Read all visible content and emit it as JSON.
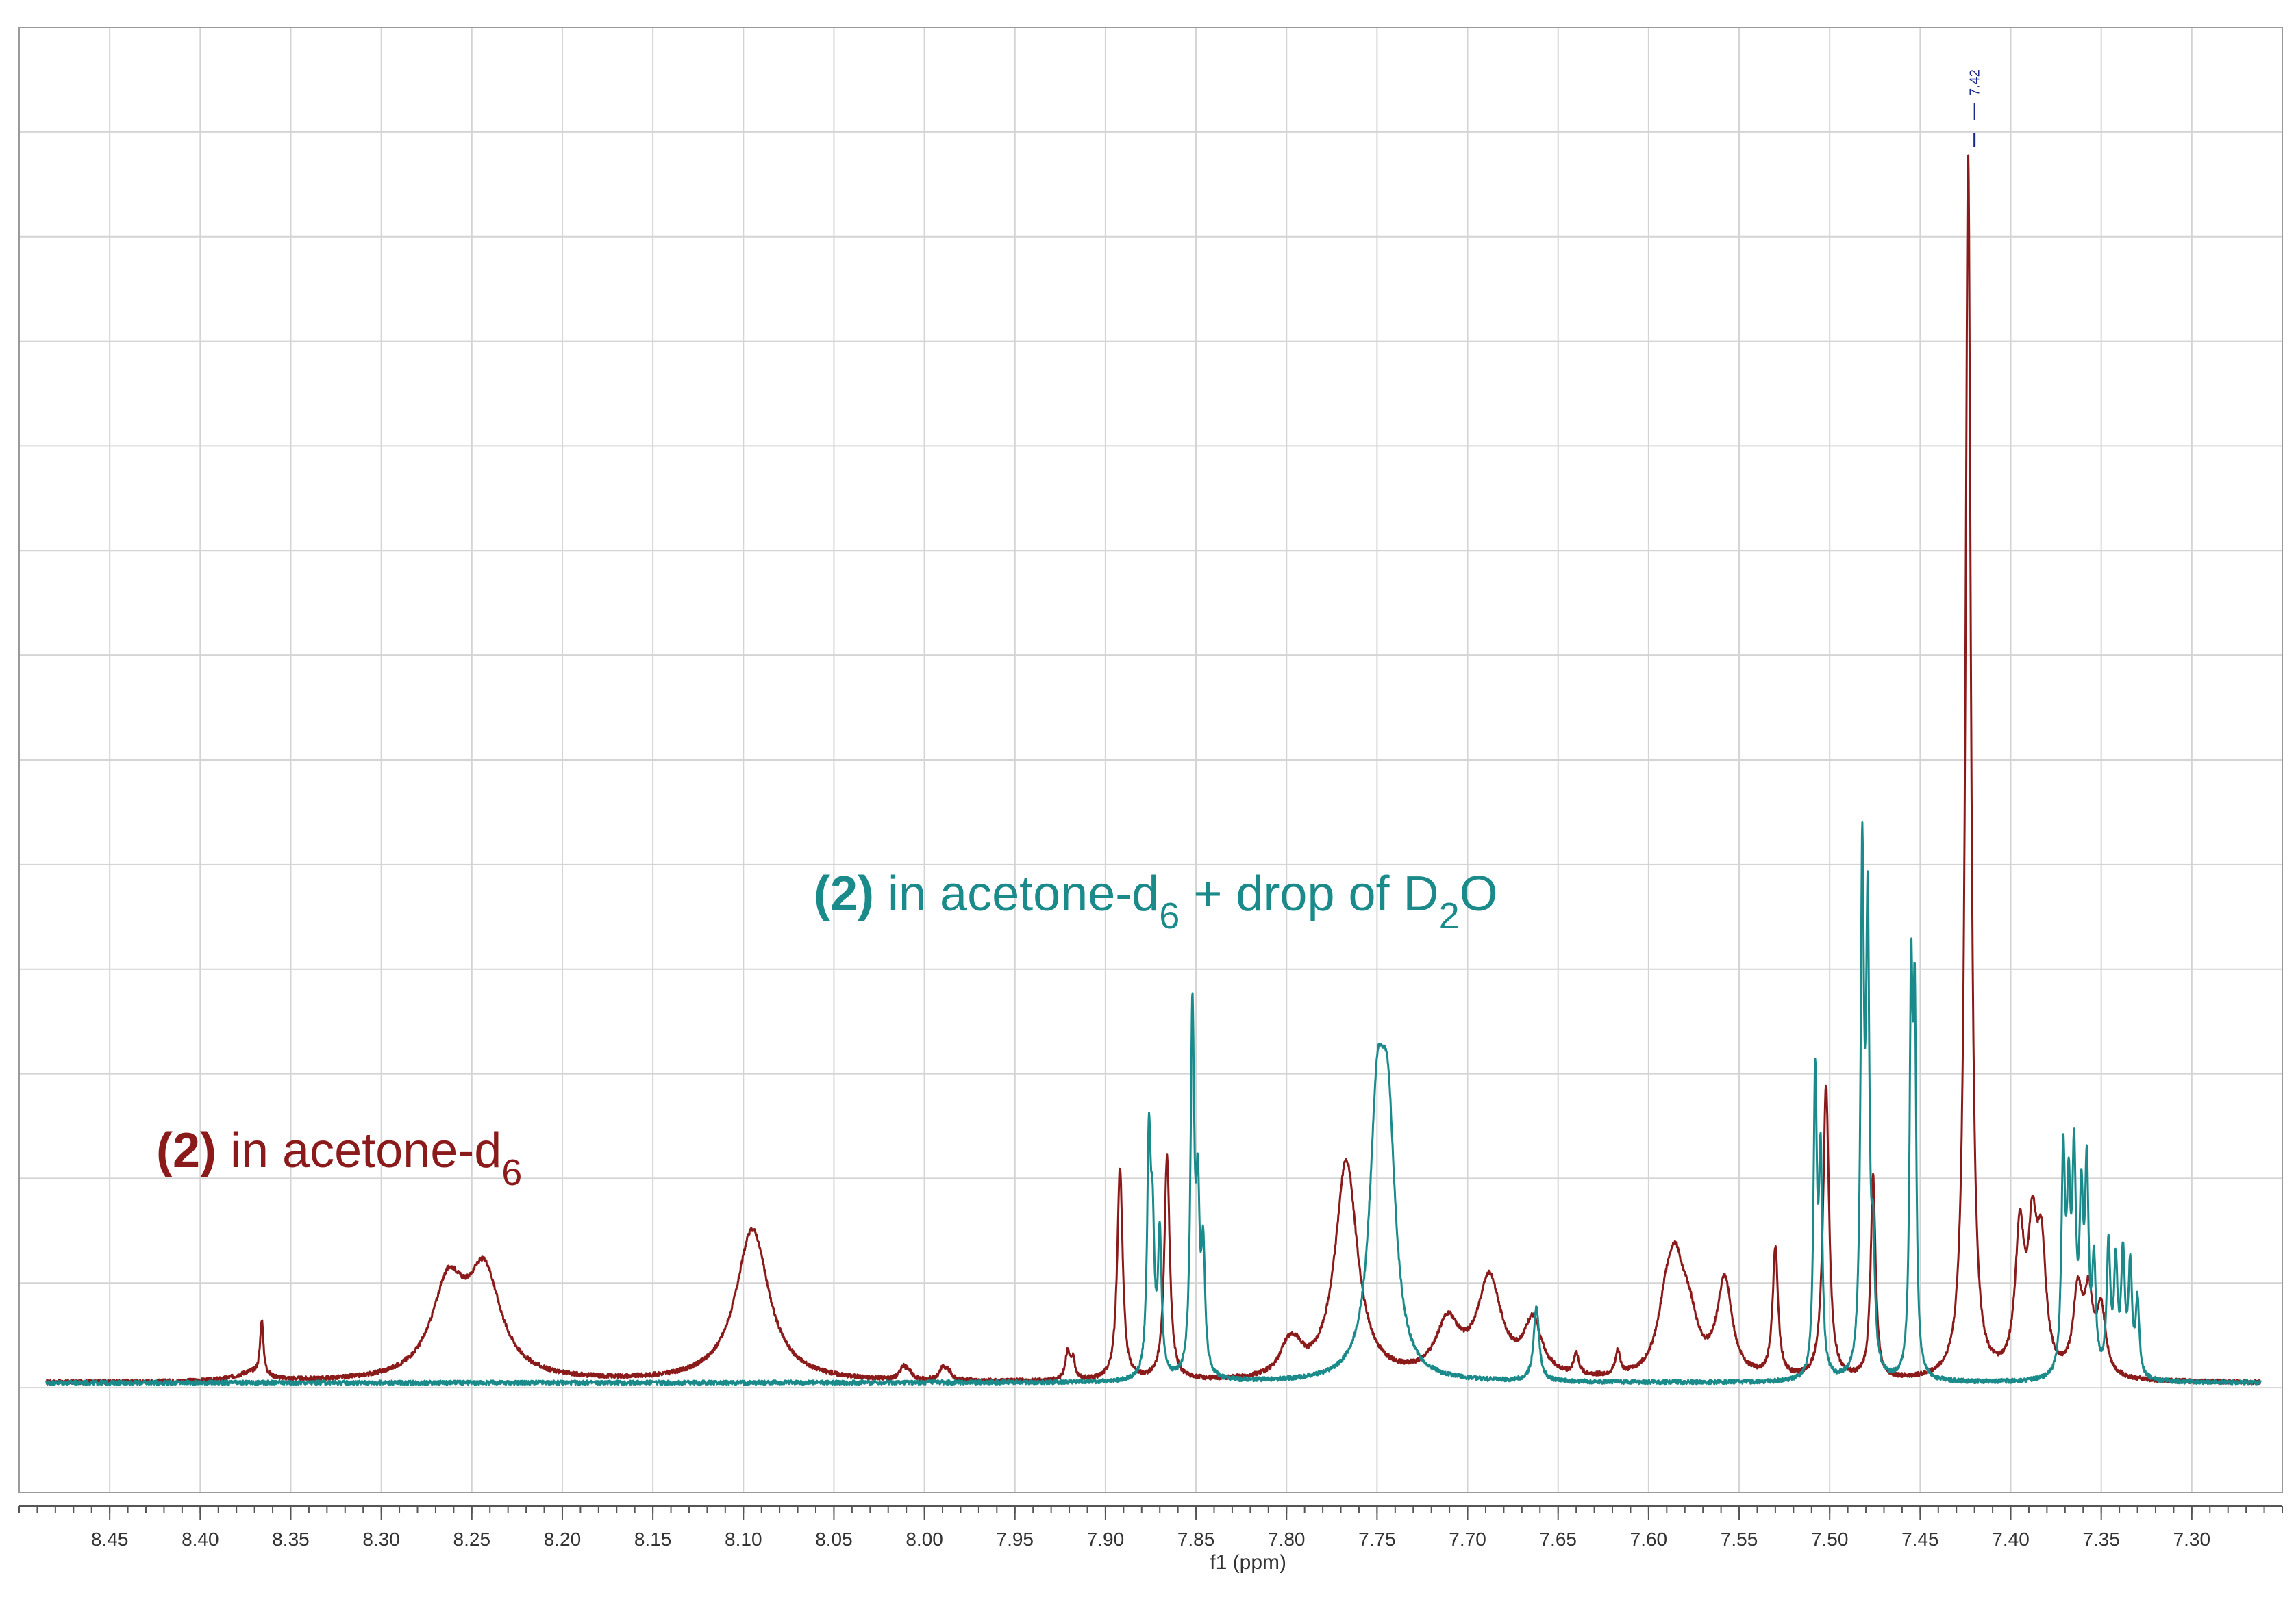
{
  "chart_data": {
    "type": "line",
    "xlabel": "f1 (ppm)",
    "x_reversed": true,
    "xlim": [
      8.5,
      7.25
    ],
    "x_ticks": [
      8.45,
      8.4,
      8.35,
      8.3,
      8.25,
      8.2,
      8.15,
      8.1,
      8.05,
      8.0,
      7.95,
      7.9,
      7.85,
      7.8,
      7.75,
      7.7,
      7.65,
      7.6,
      7.55,
      7.5,
      7.45,
      7.4,
      7.35,
      7.3
    ],
    "x_tick_labels": [
      "8.45",
      "8.40",
      "8.35",
      "8.30",
      "8.25",
      "8.20",
      "8.15",
      "8.10",
      "8.05",
      "8.00",
      "7.95",
      "7.90",
      "7.85",
      "7.80",
      "7.75",
      "7.70",
      "7.65",
      "7.60",
      "7.55",
      "7.50",
      "7.45",
      "7.40",
      "7.35",
      "7.30"
    ],
    "ylim": [
      -0.1,
      1.3
    ],
    "grid": true,
    "peak_label": {
      "ppm": 7.42,
      "text": "7.42"
    },
    "series": [
      {
        "name": "",
        "legend_bold": "(2)",
        "legend_text": " in acetone-d",
        "legend_sub": "6",
        "legend_text2": "",
        "legend_sub2": "",
        "legend_text3": "",
        "color": "#8b1a1a",
        "peaks": [
          [
            8.372,
            0.008,
            0.01
          ],
          [
            8.366,
            0.052,
            0.0011
          ],
          [
            8.263,
            0.085,
            0.011
          ],
          [
            8.243,
            0.095,
            0.011
          ],
          [
            8.095,
            0.143,
            0.011
          ],
          [
            8.012,
            0.01,
            0.002
          ],
          [
            8.009,
            0.008,
            0.002
          ],
          [
            7.99,
            0.01,
            0.002
          ],
          [
            7.987,
            0.008,
            0.002
          ],
          [
            7.921,
            0.025,
            0.0015
          ],
          [
            7.918,
            0.018,
            0.0015
          ],
          [
            7.892,
            0.2,
            0.0018
          ],
          [
            7.866,
            0.21,
            0.0018
          ],
          [
            7.8,
            0.02,
            0.005
          ],
          [
            7.795,
            0.02,
            0.005
          ],
          [
            7.767,
            0.205,
            0.0075
          ],
          [
            7.711,
            0.05,
            0.008
          ],
          [
            7.688,
            0.092,
            0.008
          ],
          [
            7.664,
            0.05,
            0.006
          ],
          [
            7.64,
            0.02,
            0.0015
          ],
          [
            7.617,
            0.022,
            0.0015
          ],
          [
            7.59,
            0.06,
            0.006
          ],
          [
            7.585,
            0.07,
            0.005
          ],
          [
            7.578,
            0.05,
            0.006
          ],
          [
            7.558,
            0.09,
            0.005
          ],
          [
            7.53,
            0.12,
            0.0018
          ],
          [
            7.502,
            0.275,
            0.002
          ],
          [
            7.476,
            0.19,
            0.0016
          ],
          [
            7.4235,
            1.15,
            0.0018
          ],
          [
            7.395,
            0.13,
            0.003
          ],
          [
            7.388,
            0.12,
            0.003
          ],
          [
            7.383,
            0.11,
            0.003
          ],
          [
            7.363,
            0.075,
            0.003
          ],
          [
            7.357,
            0.07,
            0.003
          ],
          [
            7.35,
            0.06,
            0.003
          ]
        ]
      },
      {
        "name": "",
        "legend_bold": "(2)",
        "legend_text": " in acetone-d",
        "legend_sub": "6",
        "legend_text2": " + drop of D",
        "legend_sub2": "2",
        "legend_text3": "O",
        "color": "#1a8a8a",
        "peaks": [
          [
            7.876,
            0.215,
            0.0012
          ],
          [
            7.874,
            0.12,
            0.0012
          ],
          [
            7.87,
            0.13,
            0.0012
          ],
          [
            7.852,
            0.34,
            0.0012
          ],
          [
            7.849,
            0.15,
            0.0012
          ],
          [
            7.846,
            0.11,
            0.0012
          ],
          [
            7.75,
            0.22,
            0.005
          ],
          [
            7.744,
            0.21,
            0.005
          ],
          [
            7.662,
            0.07,
            0.0018
          ],
          [
            7.508,
            0.28,
            0.0011
          ],
          [
            7.505,
            0.2,
            0.0011
          ],
          [
            7.482,
            0.47,
            0.0011
          ],
          [
            7.479,
            0.41,
            0.0011
          ],
          [
            7.476,
            0.1,
            0.0011
          ],
          [
            7.455,
            0.35,
            0.001
          ],
          [
            7.453,
            0.32,
            0.001
          ],
          [
            7.371,
            0.2,
            0.0012
          ],
          [
            7.368,
            0.15,
            0.0012
          ],
          [
            7.365,
            0.19,
            0.0012
          ],
          [
            7.361,
            0.15,
            0.0012
          ],
          [
            7.358,
            0.18,
            0.0012
          ],
          [
            7.354,
            0.1,
            0.0012
          ],
          [
            7.346,
            0.12,
            0.0012
          ],
          [
            7.342,
            0.1,
            0.0012
          ],
          [
            7.338,
            0.11,
            0.0012
          ],
          [
            7.334,
            0.1,
            0.0012
          ],
          [
            7.33,
            0.07,
            0.0012
          ]
        ]
      }
    ]
  }
}
